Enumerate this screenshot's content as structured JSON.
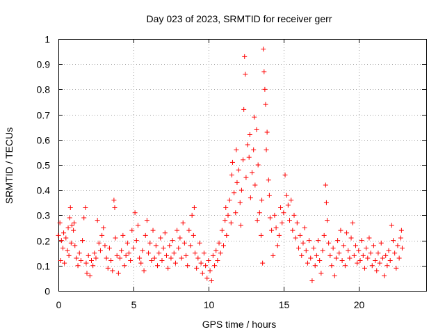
{
  "chart_data": {
    "type": "scatter",
    "title": "Day 023 of 2023, SRMTID for receiver gerr",
    "xlabel": "GPS time / hours",
    "ylabel": "SRMTID / TECUs",
    "xlim": [
      0,
      24.5
    ],
    "ylim": [
      0,
      1
    ],
    "xticks": [
      0,
      5,
      10,
      15,
      20
    ],
    "xtick_labels": [
      "0",
      "5",
      "10",
      "15",
      "20"
    ],
    "yticks": [
      0,
      0.1,
      0.2,
      0.3,
      0.4,
      0.5,
      0.6,
      0.7,
      0.8,
      0.9,
      1
    ],
    "ytick_labels": [
      "0",
      "0.1",
      "0.2",
      "0.3",
      "0.4",
      "0.5",
      "0.6",
      "0.7",
      "0.8",
      "0.9",
      "1"
    ],
    "grid": true,
    "marker": "+",
    "series": [
      {
        "name": "SRMTID",
        "color": "#ff0000",
        "points": [
          [
            0.0,
            0.22
          ],
          [
            0.1,
            0.27
          ],
          [
            0.15,
            0.12
          ],
          [
            0.2,
            0.2
          ],
          [
            0.3,
            0.17
          ],
          [
            0.35,
            0.23
          ],
          [
            0.4,
            0.11
          ],
          [
            0.5,
            0.21
          ],
          [
            0.6,
            0.16
          ],
          [
            0.65,
            0.25
          ],
          [
            0.7,
            0.14
          ],
          [
            0.75,
            0.29
          ],
          [
            0.8,
            0.33
          ],
          [
            0.85,
            0.19
          ],
          [
            0.9,
            0.26
          ],
          [
            1.0,
            0.24
          ],
          [
            1.05,
            0.27
          ],
          [
            1.1,
            0.18
          ],
          [
            1.2,
            0.13
          ],
          [
            1.3,
            0.1
          ],
          [
            1.4,
            0.15
          ],
          [
            1.5,
            0.12
          ],
          [
            1.6,
            0.2
          ],
          [
            1.7,
            0.29
          ],
          [
            1.8,
            0.33
          ],
          [
            1.85,
            0.11
          ],
          [
            1.9,
            0.07
          ],
          [
            2.0,
            0.14
          ],
          [
            2.1,
            0.06
          ],
          [
            2.2,
            0.12
          ],
          [
            2.3,
            0.1
          ],
          [
            2.4,
            0.15
          ],
          [
            2.5,
            0.13
          ],
          [
            2.6,
            0.28
          ],
          [
            2.7,
            0.19
          ],
          [
            2.8,
            0.16
          ],
          [
            2.9,
            0.22
          ],
          [
            3.0,
            0.25
          ],
          [
            3.1,
            0.18
          ],
          [
            3.2,
            0.13
          ],
          [
            3.3,
            0.09
          ],
          [
            3.4,
            0.17
          ],
          [
            3.5,
            0.12
          ],
          [
            3.6,
            0.08
          ],
          [
            3.7,
            0.36
          ],
          [
            3.75,
            0.33
          ],
          [
            3.8,
            0.21
          ],
          [
            3.9,
            0.14
          ],
          [
            4.0,
            0.07
          ],
          [
            4.1,
            0.13
          ],
          [
            4.2,
            0.16
          ],
          [
            4.3,
            0.22
          ],
          [
            4.4,
            0.1
          ],
          [
            4.5,
            0.14
          ],
          [
            4.6,
            0.19
          ],
          [
            4.7,
            0.15
          ],
          [
            4.8,
            0.12
          ],
          [
            4.9,
            0.24
          ],
          [
            5.0,
            0.17
          ],
          [
            5.1,
            0.31
          ],
          [
            5.2,
            0.2
          ],
          [
            5.3,
            0.26
          ],
          [
            5.4,
            0.13
          ],
          [
            5.5,
            0.11
          ],
          [
            5.6,
            0.16
          ],
          [
            5.7,
            0.08
          ],
          [
            5.8,
            0.22
          ],
          [
            5.9,
            0.28
          ],
          [
            6.0,
            0.15
          ],
          [
            6.1,
            0.19
          ],
          [
            6.2,
            0.12
          ],
          [
            6.3,
            0.24
          ],
          [
            6.4,
            0.13
          ],
          [
            6.5,
            0.18
          ],
          [
            6.6,
            0.1
          ],
          [
            6.7,
            0.15
          ],
          [
            6.8,
            0.21
          ],
          [
            6.9,
            0.12
          ],
          [
            7.0,
            0.17
          ],
          [
            7.1,
            0.23
          ],
          [
            7.2,
            0.14
          ],
          [
            7.3,
            0.09
          ],
          [
            7.4,
            0.18
          ],
          [
            7.5,
            0.13
          ],
          [
            7.6,
            0.2
          ],
          [
            7.7,
            0.15
          ],
          [
            7.8,
            0.11
          ],
          [
            7.9,
            0.24
          ],
          [
            8.0,
            0.17
          ],
          [
            8.1,
            0.21
          ],
          [
            8.2,
            0.13
          ],
          [
            8.3,
            0.27
          ],
          [
            8.4,
            0.19
          ],
          [
            8.5,
            0.14
          ],
          [
            8.6,
            0.1
          ],
          [
            8.7,
            0.24
          ],
          [
            8.8,
            0.18
          ],
          [
            8.9,
            0.3
          ],
          [
            9.0,
            0.22
          ],
          [
            9.05,
            0.33
          ],
          [
            9.1,
            0.15
          ],
          [
            9.2,
            0.09
          ],
          [
            9.3,
            0.13
          ],
          [
            9.4,
            0.19
          ],
          [
            9.5,
            0.11
          ],
          [
            9.6,
            0.07
          ],
          [
            9.7,
            0.15
          ],
          [
            9.8,
            0.1
          ],
          [
            9.9,
            0.05
          ],
          [
            10.0,
            0.12
          ],
          [
            10.1,
            0.08
          ],
          [
            10.2,
            0.04
          ],
          [
            10.3,
            0.14
          ],
          [
            10.4,
            0.1
          ],
          [
            10.5,
            0.16
          ],
          [
            10.6,
            0.12
          ],
          [
            10.7,
            0.19
          ],
          [
            10.8,
            0.15
          ],
          [
            10.9,
            0.24
          ],
          [
            11.0,
            0.18
          ],
          [
            11.1,
            0.28
          ],
          [
            11.15,
            0.33
          ],
          [
            11.2,
            0.22
          ],
          [
            11.3,
            0.3
          ],
          [
            11.4,
            0.36
          ],
          [
            11.5,
            0.27
          ],
          [
            11.55,
            0.46
          ],
          [
            11.6,
            0.51
          ],
          [
            11.7,
            0.39
          ],
          [
            11.8,
            0.31
          ],
          [
            11.85,
            0.56
          ],
          [
            11.9,
            0.43
          ],
          [
            12.0,
            0.48
          ],
          [
            12.1,
            0.35
          ],
          [
            12.15,
            0.26
          ],
          [
            12.2,
            0.4
          ],
          [
            12.3,
            0.52
          ],
          [
            12.35,
            0.72
          ],
          [
            12.4,
            0.93
          ],
          [
            12.45,
            0.86
          ],
          [
            12.5,
            0.45
          ],
          [
            12.6,
            0.58
          ],
          [
            12.7,
            0.53
          ],
          [
            12.75,
            0.62
          ],
          [
            12.8,
            0.37
          ],
          [
            12.9,
            0.47
          ],
          [
            13.0,
            0.56
          ],
          [
            13.05,
            0.69
          ],
          [
            13.1,
            0.42
          ],
          [
            13.2,
            0.64
          ],
          [
            13.25,
            0.28
          ],
          [
            13.3,
            0.5
          ],
          [
            13.4,
            0.31
          ],
          [
            13.5,
            0.22
          ],
          [
            13.55,
            0.36
          ],
          [
            13.6,
            0.11
          ],
          [
            13.65,
            0.96
          ],
          [
            13.7,
            0.87
          ],
          [
            13.75,
            0.8
          ],
          [
            13.8,
            0.74
          ],
          [
            13.85,
            0.56
          ],
          [
            13.9,
            0.63
          ],
          [
            14.0,
            0.44
          ],
          [
            14.05,
            0.38
          ],
          [
            14.1,
            0.29
          ],
          [
            14.2,
            0.24
          ],
          [
            14.3,
            0.14
          ],
          [
            14.4,
            0.3
          ],
          [
            14.5,
            0.25
          ],
          [
            14.6,
            0.18
          ],
          [
            14.7,
            0.22
          ],
          [
            14.8,
            0.33
          ],
          [
            14.9,
            0.27
          ],
          [
            15.0,
            0.31
          ],
          [
            15.1,
            0.46
          ],
          [
            15.2,
            0.38
          ],
          [
            15.3,
            0.34
          ],
          [
            15.4,
            0.28
          ],
          [
            15.5,
            0.36
          ],
          [
            15.6,
            0.24
          ],
          [
            15.7,
            0.3
          ],
          [
            15.8,
            0.21
          ],
          [
            15.9,
            0.27
          ],
          [
            16.0,
            0.17
          ],
          [
            16.1,
            0.22
          ],
          [
            16.2,
            0.14
          ],
          [
            16.3,
            0.19
          ],
          [
            16.4,
            0.25
          ],
          [
            16.5,
            0.16
          ],
          [
            16.6,
            0.11
          ],
          [
            16.7,
            0.2
          ],
          [
            16.8,
            0.13
          ],
          [
            16.9,
            0.04
          ],
          [
            17.0,
            0.17
          ],
          [
            17.1,
            0.1
          ],
          [
            17.2,
            0.14
          ],
          [
            17.3,
            0.2
          ],
          [
            17.4,
            0.12
          ],
          [
            17.5,
            0.07
          ],
          [
            17.6,
            0.16
          ],
          [
            17.7,
            0.22
          ],
          [
            17.8,
            0.42
          ],
          [
            17.85,
            0.35
          ],
          [
            17.9,
            0.28
          ],
          [
            18.0,
            0.19
          ],
          [
            18.1,
            0.14
          ],
          [
            18.2,
            0.1
          ],
          [
            18.3,
            0.17
          ],
          [
            18.4,
            0.06
          ],
          [
            18.5,
            0.13
          ],
          [
            18.6,
            0.2
          ],
          [
            18.7,
            0.15
          ],
          [
            18.8,
            0.24
          ],
          [
            18.9,
            0.12
          ],
          [
            19.0,
            0.18
          ],
          [
            19.1,
            0.1
          ],
          [
            19.2,
            0.23
          ],
          [
            19.3,
            0.16
          ],
          [
            19.4,
            0.13
          ],
          [
            19.5,
            0.21
          ],
          [
            19.6,
            0.27
          ],
          [
            19.7,
            0.14
          ],
          [
            19.8,
            0.18
          ],
          [
            19.9,
            0.11
          ],
          [
            20.0,
            0.16
          ],
          [
            20.1,
            0.12
          ],
          [
            20.2,
            0.2
          ],
          [
            20.3,
            0.14
          ],
          [
            20.4,
            0.09
          ],
          [
            20.5,
            0.17
          ],
          [
            20.6,
            0.13
          ],
          [
            20.7,
            0.21
          ],
          [
            20.8,
            0.15
          ],
          [
            20.9,
            0.1
          ],
          [
            21.0,
            0.18
          ],
          [
            21.1,
            0.12
          ],
          [
            21.2,
            0.08
          ],
          [
            21.3,
            0.15
          ],
          [
            21.4,
            0.11
          ],
          [
            21.5,
            0.19
          ],
          [
            21.6,
            0.13
          ],
          [
            21.7,
            0.06
          ],
          [
            21.8,
            0.14
          ],
          [
            21.9,
            0.1
          ],
          [
            22.0,
            0.16
          ],
          [
            22.1,
            0.12
          ],
          [
            22.2,
            0.26
          ],
          [
            22.3,
            0.2
          ],
          [
            22.4,
            0.15
          ],
          [
            22.5,
            0.09
          ],
          [
            22.6,
            0.18
          ],
          [
            22.7,
            0.13
          ],
          [
            22.8,
            0.21
          ],
          [
            22.85,
            0.24
          ],
          [
            22.9,
            0.17
          ]
        ]
      }
    ]
  }
}
